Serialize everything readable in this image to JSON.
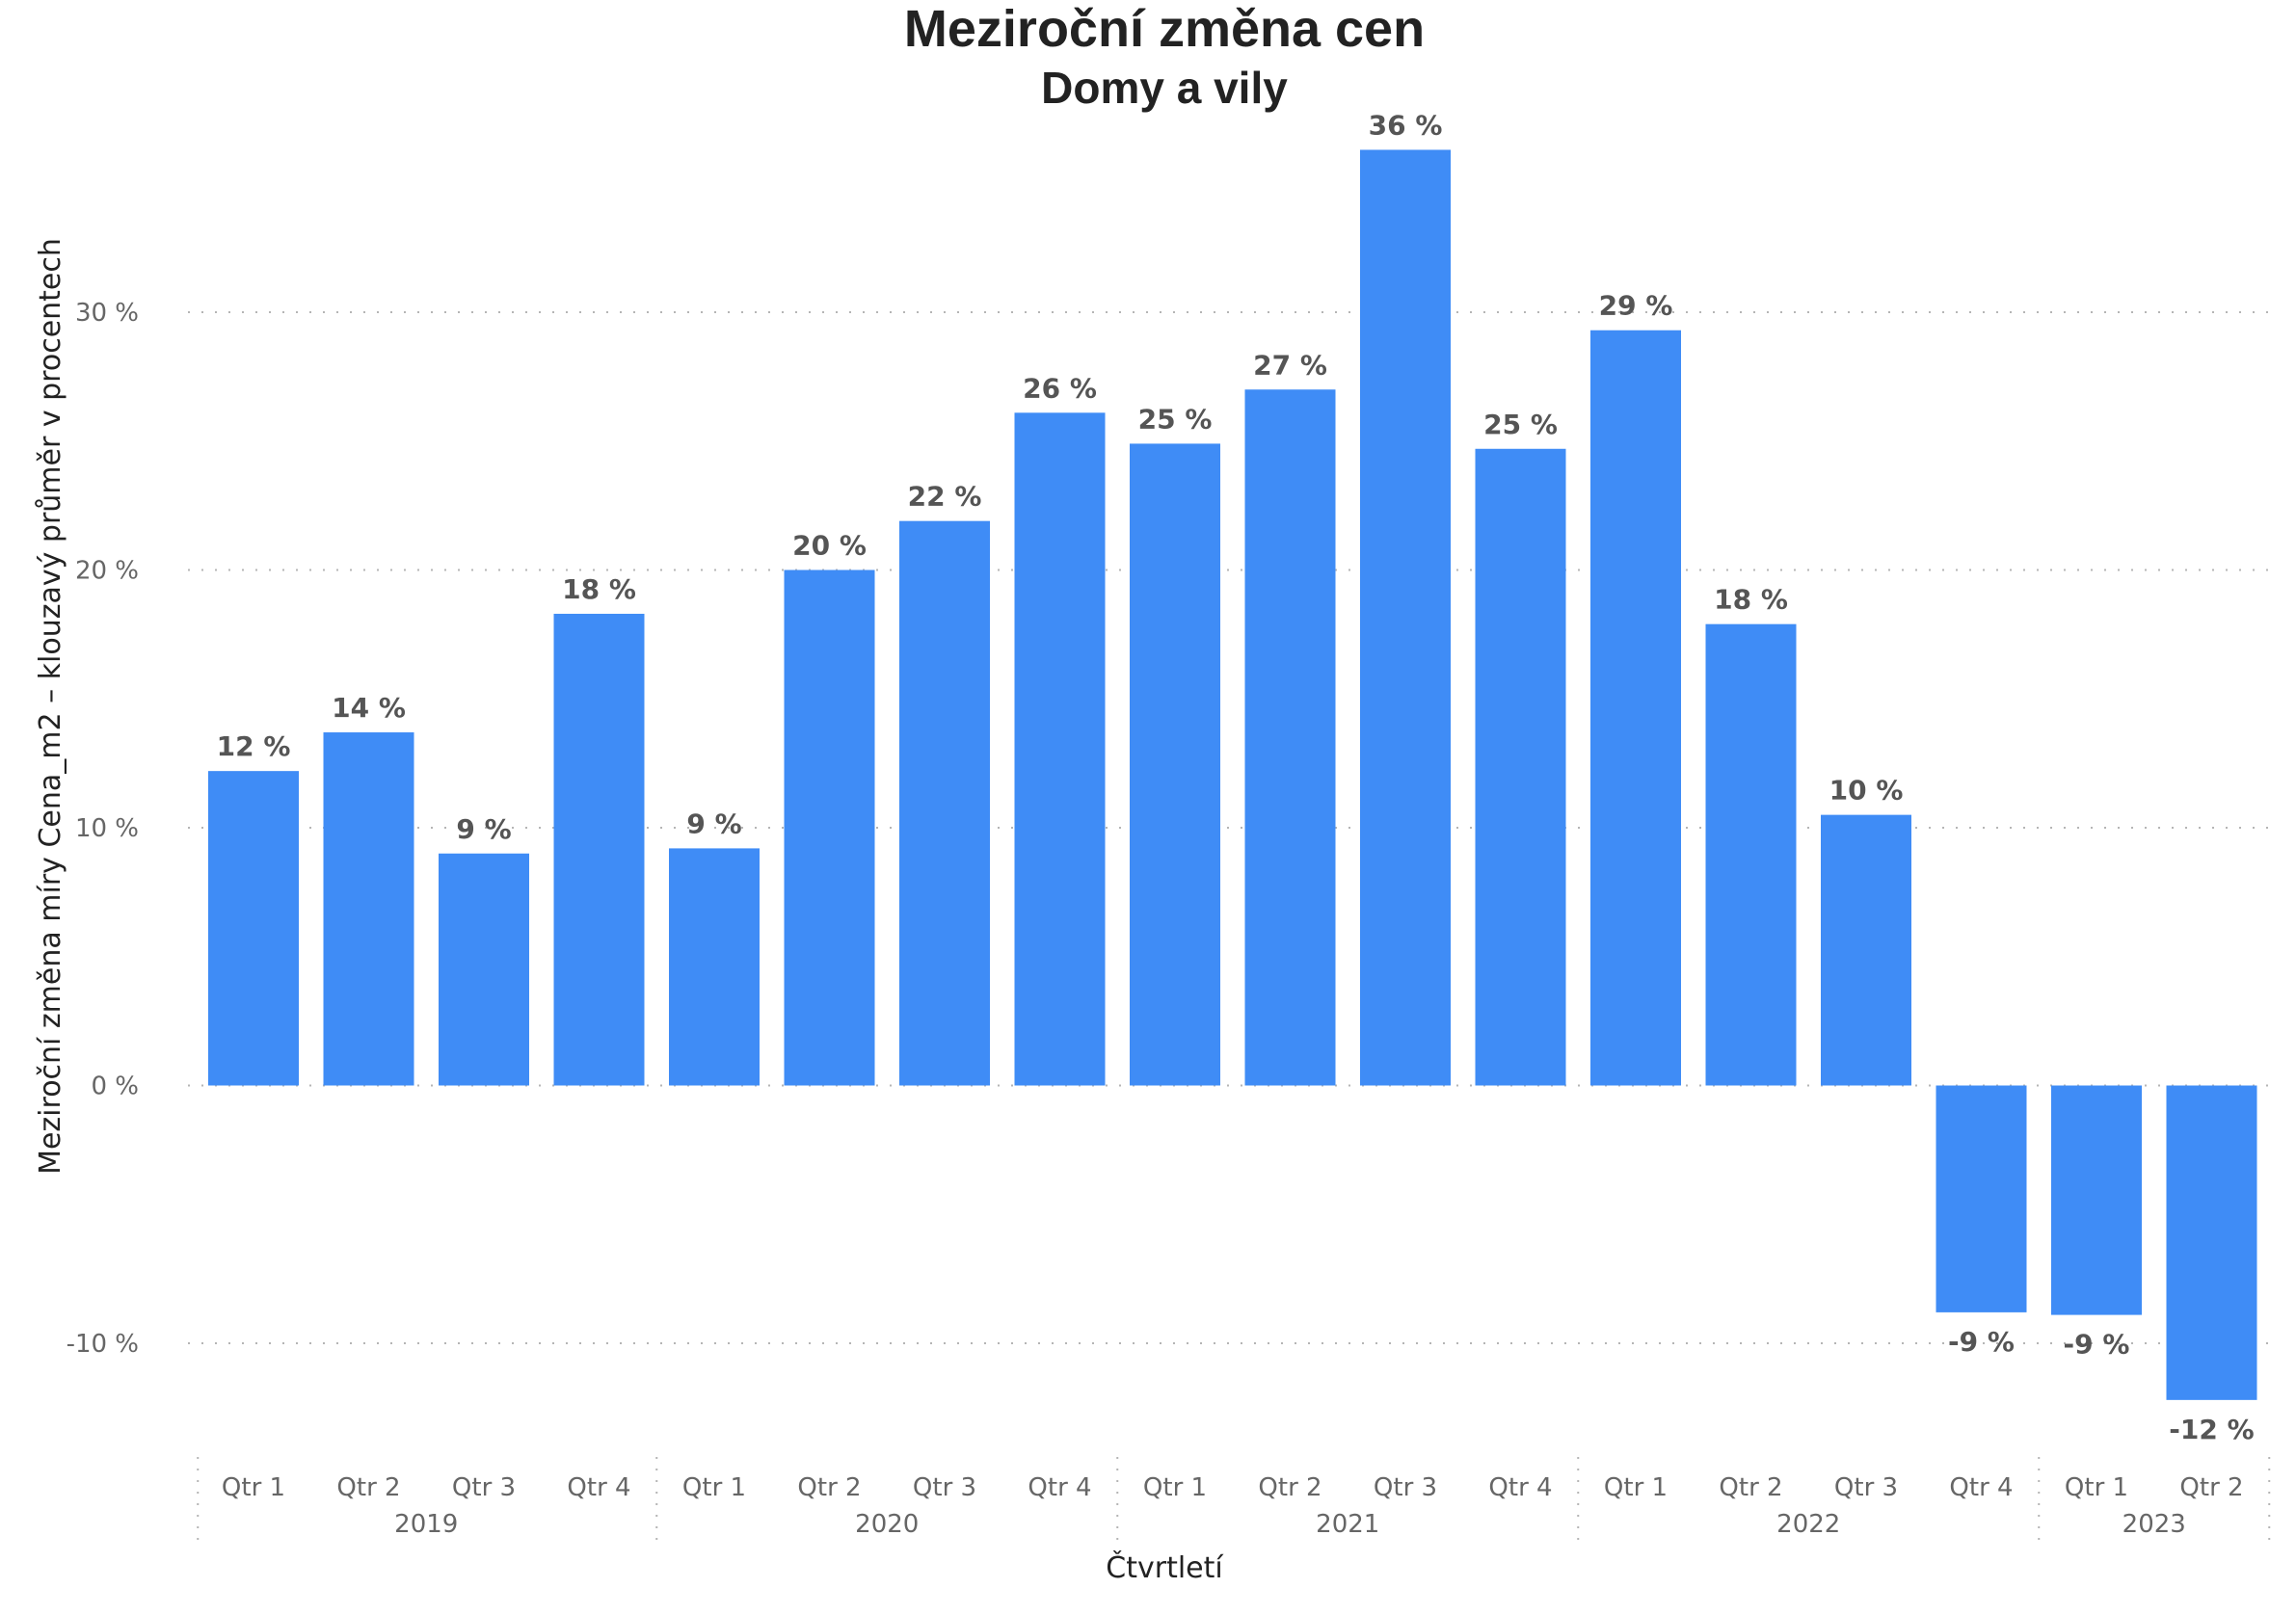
{
  "chart_data": {
    "type": "bar",
    "title": "Meziroční změna cen",
    "subtitle": "Domy a vily",
    "xlabel": "Čtvrtletí",
    "ylabel": "Meziroční změna míry Cena_m2 – klouzavý průměr v procentech",
    "ylim": [
      -14.5,
      37.5
    ],
    "yticks": [
      -10,
      0,
      10,
      20,
      30
    ],
    "ytick_labels": [
      "-10 %",
      "0 %",
      "10 %",
      "20 %",
      "30 %"
    ],
    "grid": true,
    "bar_color": "#3F8CF6",
    "categories": [
      "Qtr 1",
      "Qtr 2",
      "Qtr 3",
      "Qtr 4",
      "Qtr 1",
      "Qtr 2",
      "Qtr 3",
      "Qtr 4",
      "Qtr 1",
      "Qtr 2",
      "Qtr 3",
      "Qtr 4",
      "Qtr 1",
      "Qtr 2",
      "Qtr 3",
      "Qtr 4",
      "Qtr 1",
      "Qtr 2"
    ],
    "years": [
      {
        "label": "2019",
        "count": 4
      },
      {
        "label": "2020",
        "count": 4
      },
      {
        "label": "2021",
        "count": 4
      },
      {
        "label": "2022",
        "count": 4
      },
      {
        "label": "2023",
        "count": 2
      }
    ],
    "values": [
      12.2,
      13.7,
      9.0,
      18.3,
      9.2,
      20.0,
      21.9,
      26.1,
      24.9,
      27.0,
      36.3,
      24.7,
      29.3,
      17.9,
      10.5,
      -8.8,
      -8.9,
      -12.2
    ],
    "data_labels": [
      "12 %",
      "14 %",
      "9 %",
      "18 %",
      "9 %",
      "20 %",
      "22 %",
      "26 %",
      "25 %",
      "27 %",
      "36 %",
      "25 %",
      "29 %",
      "18 %",
      "10 %",
      "-9 %",
      "-9 %",
      "-12 %"
    ]
  }
}
